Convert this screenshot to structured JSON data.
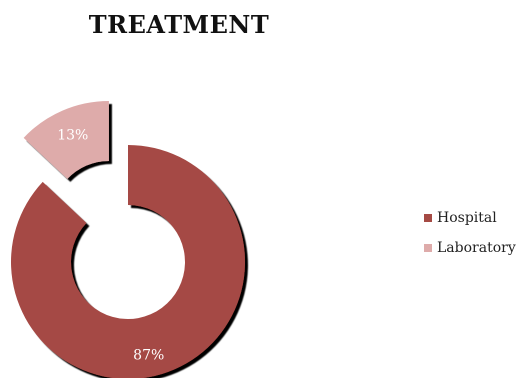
{
  "chart_data": {
    "type": "pie",
    "style": "exploded-doughnut",
    "title": "TREATMENT",
    "categories": [
      "Hospital",
      "Laboratory"
    ],
    "values": [
      87,
      13
    ],
    "labels": [
      "87%",
      "13%"
    ],
    "colors": [
      "#a54a44",
      "#deabaa"
    ],
    "legend": "right"
  }
}
